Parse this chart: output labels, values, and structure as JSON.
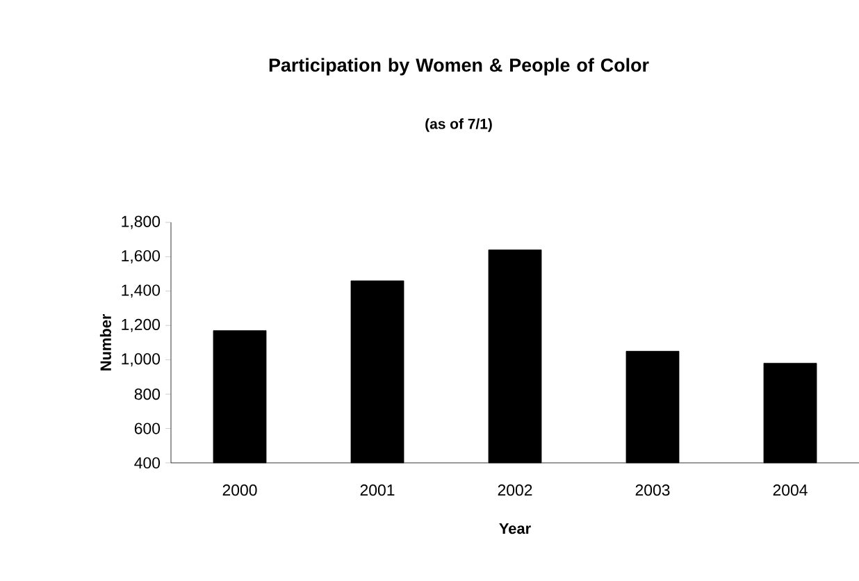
{
  "chart_data": {
    "type": "bar",
    "title": "Participation by Women & People of Color",
    "subtitle": "(as of 7/1)",
    "xlabel": "Year",
    "ylabel": "Number",
    "categories": [
      "2000",
      "2001",
      "2002",
      "2003",
      "2004"
    ],
    "values": [
      1170,
      1460,
      1640,
      1050,
      980
    ],
    "color": "#000000",
    "ylim": [
      400,
      1800
    ],
    "yticks": [
      {
        "value": 400,
        "label": "400"
      },
      {
        "value": 600,
        "label": "600"
      },
      {
        "value": 800,
        "label": "800"
      },
      {
        "value": 1000,
        "label": "1,000"
      },
      {
        "value": 1200,
        "label": "1,200"
      },
      {
        "value": 1400,
        "label": "1,400"
      },
      {
        "value": 1600,
        "label": "1,600"
      },
      {
        "value": 1800,
        "label": "1,800"
      }
    ],
    "grid": false
  }
}
